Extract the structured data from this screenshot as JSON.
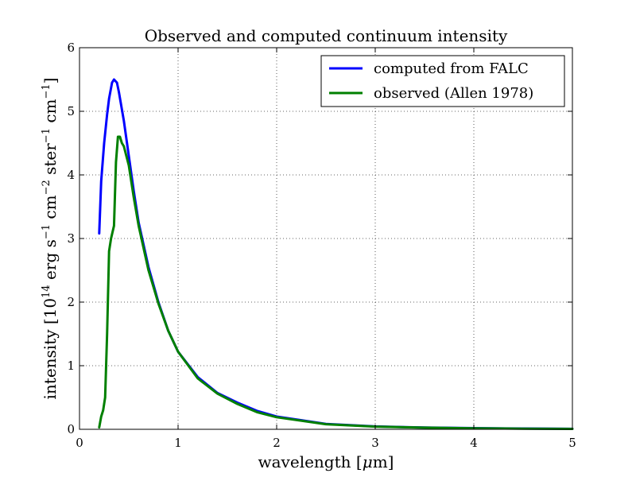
{
  "chart_data": {
    "type": "line",
    "title": "Observed and computed continuum intensity",
    "xlabel_prefix": "wavelength [",
    "xlabel_mu": "μ",
    "xlabel_suffix": "m]",
    "ylabel_parts": {
      "p1": "intensity [10",
      "sup1": "14",
      "p2": " erg s",
      "sup2": "−1",
      "p3": " cm",
      "sup3": "−2",
      "p4": " ster",
      "sup4": "−1",
      "p5": " cm",
      "sup5": "−1",
      "p6": "]"
    },
    "xlim": [
      0,
      5
    ],
    "ylim": [
      0,
      6
    ],
    "xticks": [
      0,
      1,
      2,
      3,
      4,
      5
    ],
    "yticks": [
      0,
      1,
      2,
      3,
      4,
      5,
      6
    ],
    "grid": true,
    "legend_position": "top-right",
    "series": [
      {
        "name": "computed from FALC",
        "color": "#0000ff",
        "x": [
          0.2,
          0.22,
          0.25,
          0.28,
          0.3,
          0.33,
          0.35,
          0.38,
          0.4,
          0.45,
          0.5,
          0.55,
          0.6,
          0.7,
          0.8,
          0.9,
          1.0,
          1.2,
          1.4,
          1.6,
          1.8,
          2.0,
          2.5,
          3.0,
          3.5,
          4.0,
          4.5,
          5.0
        ],
        "y": [
          3.08,
          3.9,
          4.5,
          4.95,
          5.2,
          5.45,
          5.5,
          5.45,
          5.3,
          4.85,
          4.3,
          3.75,
          3.25,
          2.55,
          2.0,
          1.55,
          1.22,
          0.82,
          0.57,
          0.42,
          0.29,
          0.2,
          0.085,
          0.045,
          0.028,
          0.018,
          0.012,
          0.008
        ]
      },
      {
        "name": "observed (Allen 1978)",
        "color": "#008000",
        "x": [
          0.2,
          0.22,
          0.24,
          0.26,
          0.28,
          0.3,
          0.32,
          0.35,
          0.37,
          0.39,
          0.41,
          0.43,
          0.45,
          0.5,
          0.55,
          0.6,
          0.7,
          0.8,
          0.9,
          1.0,
          1.2,
          1.4,
          1.6,
          1.8,
          2.0,
          2.5,
          3.0,
          3.5,
          4.0,
          4.5,
          5.0
        ],
        "y": [
          0.03,
          0.2,
          0.3,
          0.5,
          1.5,
          2.8,
          3.0,
          3.2,
          4.2,
          4.6,
          4.6,
          4.5,
          4.45,
          4.15,
          3.65,
          3.2,
          2.5,
          1.98,
          1.55,
          1.22,
          0.8,
          0.56,
          0.4,
          0.27,
          0.19,
          0.08,
          0.042,
          0.026,
          0.016,
          0.01,
          0.007
        ]
      }
    ]
  }
}
